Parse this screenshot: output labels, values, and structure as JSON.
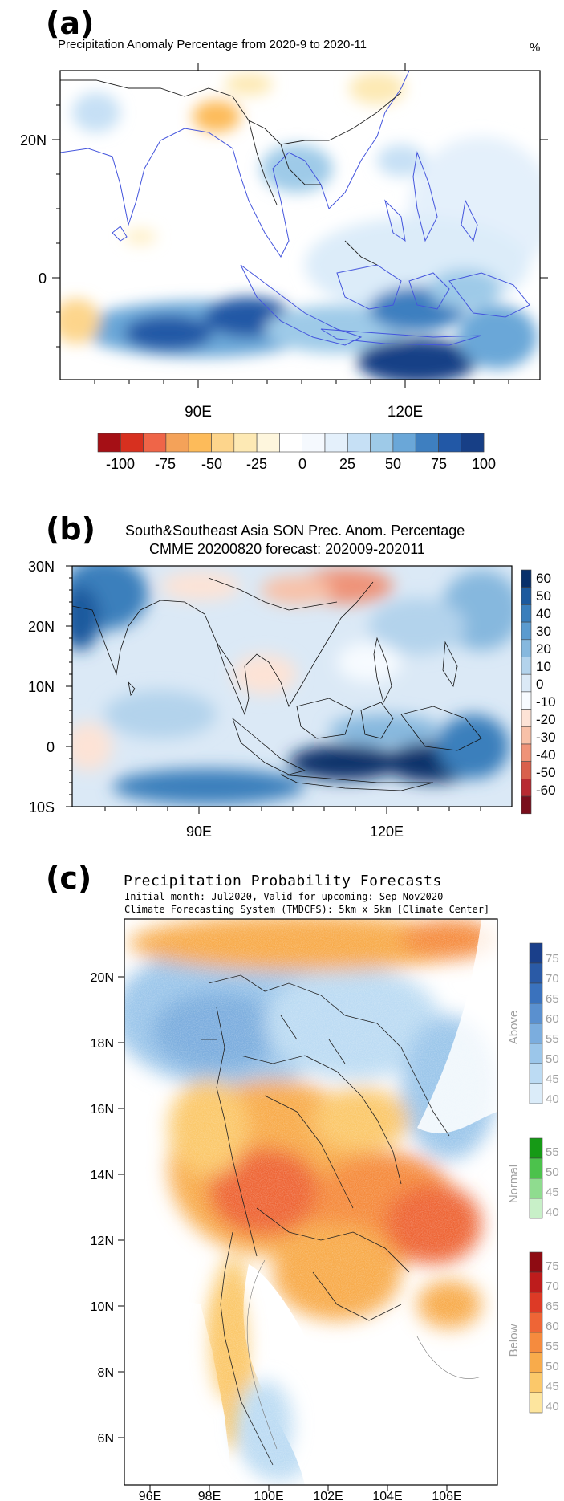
{
  "colors": {
    "land": "#f2efe9",
    "coast_a": "#4455dd",
    "border": "#222222",
    "neg_strong": "#b2182b",
    "neg_light": "#fde0a0",
    "pos_light": "#d1e5f0",
    "pos_strong": "#1f4e96",
    "above_strong": "#1a3f8a",
    "normal_strong": "#1a9c1a",
    "below_strong": "#a50f15"
  },
  "panel_a": {
    "label": "(a)",
    "title": "Precipitation Anomaly Percentage from 2020-9 to 2020-11",
    "unit": "%",
    "lat_ticks": [
      "20N",
      "0"
    ],
    "lon_ticks": [
      "90E",
      "120E"
    ],
    "colorbar_labels": [
      "-100",
      "-75",
      "-50",
      "-25",
      "0",
      "25",
      "50",
      "75",
      "100"
    ],
    "colorbar_colors": [
      "#a50f15",
      "#d7301f",
      "#ef6548",
      "#f4a259",
      "#fdbb5a",
      "#fdd58c",
      "#fde9b4",
      "#fef6dd",
      "#ffffff",
      "#f5f9fe",
      "#e4f0fb",
      "#c6e0f5",
      "#9ecae8",
      "#6aa7d8",
      "#3e7fc0",
      "#2258a6",
      "#173f86"
    ]
  },
  "panel_b": {
    "label": "(b)",
    "title_line1": "South&Southeast Asia SON Prec. Anom. Percentage",
    "title_line2": "CMME 20200820 forecast: 202009-202011",
    "lat_ticks": [
      "30N",
      "20N",
      "10N",
      "0",
      "10S"
    ],
    "lon_ticks": [
      "90E",
      "120E"
    ],
    "colorbar_labels": [
      "60",
      "50",
      "40",
      "30",
      "20",
      "10",
      "0",
      "-10",
      "-20",
      "-30",
      "-40",
      "-50",
      "-60"
    ],
    "colorbar_colors": [
      "#08306b",
      "#1c5a9e",
      "#3a7fbc",
      "#5b9bcf",
      "#86b8de",
      "#b3d3ec",
      "#dbe9f6",
      "#f7fbff",
      "#fde3d6",
      "#f8c1a8",
      "#ef9378",
      "#d9604c",
      "#b82a31",
      "#7a0e1c"
    ]
  },
  "panel_c": {
    "label": "(c)",
    "title": "Precipitation Probability Forecasts",
    "subtitle1": "Initial month: Jul2020, Valid for upcoming: Sep–Nov2020",
    "subtitle2": "Climate Forecasting System (TMDCFS): 5km x 5km  [Climate Center]",
    "lat_ticks": [
      "20N",
      "18N",
      "16N",
      "14N",
      "12N",
      "10N",
      "8N",
      "6N"
    ],
    "lon_ticks": [
      "96E",
      "98E",
      "100E",
      "102E",
      "104E",
      "106E"
    ],
    "above": {
      "name": "Above",
      "labels": [
        "75",
        "70",
        "65",
        "60",
        "55",
        "50",
        "45",
        "40"
      ],
      "colors": [
        "#1a3f8a",
        "#2a5aa6",
        "#3a72bd",
        "#5a90cf",
        "#7badde",
        "#9bc6ea",
        "#bcdbf3",
        "#dbecf9"
      ]
    },
    "normal": {
      "name": "Normal",
      "labels": [
        "55",
        "50",
        "45",
        "40"
      ],
      "colors": [
        "#169a16",
        "#4cc24c",
        "#8fdc8f",
        "#c8f0c8"
      ]
    },
    "below": {
      "name": "Below",
      "labels": [
        "75",
        "70",
        "65",
        "60",
        "55",
        "50",
        "45",
        "40"
      ],
      "colors": [
        "#8e0b12",
        "#bd1c1c",
        "#dd3a26",
        "#ee6536",
        "#f58b3e",
        "#f8ab4b",
        "#fbc86a",
        "#fde59e"
      ]
    }
  }
}
